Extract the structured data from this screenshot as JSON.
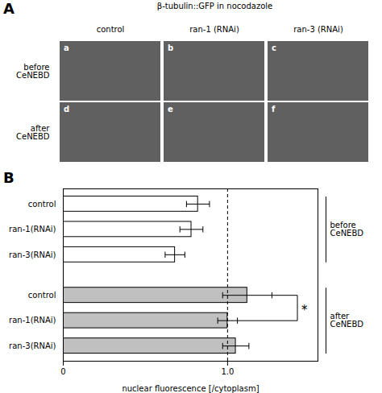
{
  "chart_data": [
    {
      "type": "image_grid",
      "title": "β-tubulin::GFP in nocodazole",
      "categories": [
        "control",
        "ran-1 (RNAi)",
        "ran-3 (RNAi)"
      ],
      "rows": [
        "before\nCeNEBD",
        "after\nCeNEBD"
      ],
      "cell_labels": [
        "a",
        "b",
        "c",
        "d",
        "e",
        "f"
      ],
      "color": "#606060",
      "annotations": [
        {
          "type": "panel_label",
          "text": "A"
        }
      ]
    },
    {
      "type": "bar",
      "orientation": "horizontal",
      "categories": [
        "control",
        "ran-1(RNAi)",
        "ran-3(RNAi)",
        "control",
        "ran-1(RNAi)",
        "ran-3(RNAi)"
      ],
      "values": [
        0.82,
        0.78,
        0.68,
        1.12,
        1.0,
        1.05
      ],
      "errors": [
        0.07,
        0.07,
        0.06,
        0.15,
        0.06,
        0.08
      ],
      "colors": [
        "white",
        "white",
        "white",
        "#c0c0c0",
        "#c0c0c0",
        "#c0c0c0"
      ],
      "xlabel": "nuclear fluorescence [/cytoplasm]",
      "xlim": [
        0,
        1.55
      ],
      "xticks": [
        0,
        {
          "value": 1.0,
          "label": "1.0"
        }
      ],
      "grid": false,
      "annotations": [
        {
          "type": "panel_label",
          "text": "B"
        },
        {
          "type": "vline",
          "x": 1.0,
          "line_style": "dashed"
        },
        {
          "type": "bracket",
          "text": "*",
          "between": [
            3,
            4
          ]
        },
        {
          "type": "group",
          "text": "before\nCeNEBD",
          "from": 0,
          "to": 2
        },
        {
          "type": "group",
          "text": "after\nCeNEBD",
          "from": 3,
          "to": 5
        }
      ]
    }
  ]
}
